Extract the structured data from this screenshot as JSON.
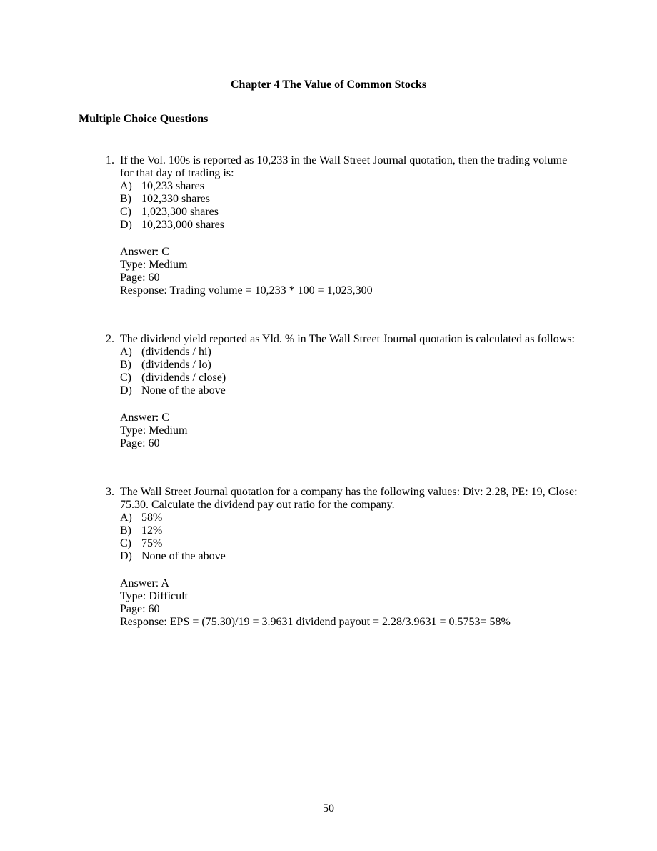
{
  "chapter_title": "Chapter 4  The Value of Common Stocks",
  "section_heading": "Multiple Choice Questions",
  "questions": [
    {
      "number": "1.",
      "text": "If the Vol. 100s is reported as 10,233 in the Wall Street Journal quotation, then the trading volume for that day of trading is:",
      "options": [
        {
          "letter": "A)",
          "text": "10,233 shares"
        },
        {
          "letter": "B)",
          "text": "102,330 shares"
        },
        {
          "letter": "C)",
          "text": "1,023,300 shares"
        },
        {
          "letter": "D)",
          "text": "10,233,000 shares"
        }
      ],
      "answer": "Answer: C",
      "type": "Type: Medium",
      "page": "Page: 60",
      "response": "Response: Trading volume = 10,233 * 100 = 1,023,300"
    },
    {
      "number": "2.",
      "text": "The dividend yield reported as Yld. % in The Wall Street Journal quotation is calculated as follows:",
      "options": [
        {
          "letter": "A)",
          "text": "(dividends / hi)"
        },
        {
          "letter": "B)",
          "text": "(dividends / lo)"
        },
        {
          "letter": "C)",
          "text": "(dividends / close)"
        },
        {
          "letter": "D)",
          "text": "None of the above"
        }
      ],
      "answer": "Answer: C",
      "type": "Type: Medium",
      "page": "Page: 60",
      "response": ""
    },
    {
      "number": "3.",
      "text": "The Wall Street Journal quotation for a company has the following values: Div: 2.28, PE: 19, Close: 75.30. Calculate the dividend pay out ratio for the company.",
      "options": [
        {
          "letter": "A)",
          "text": "58%"
        },
        {
          "letter": "B)",
          "text": "12%"
        },
        {
          "letter": "C)",
          "text": "75%"
        },
        {
          "letter": "D)",
          "text": "None of the above"
        }
      ],
      "answer": "Answer: A",
      "type": "Type: Difficult",
      "page": "Page: 60",
      "response": "Response: EPS = (75.30)/19 = 3.9631 dividend payout = 2.28/3.9631 = 0.5753= 58%"
    }
  ],
  "page_number": "50"
}
